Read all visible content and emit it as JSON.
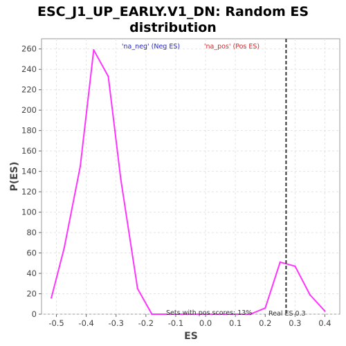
{
  "chart_data": {
    "type": "line",
    "title_lines": [
      "ESC_J1_UP_EARLY.V1_DN: Random ES",
      "distribution"
    ],
    "xlabel": "ES",
    "ylabel": "P(ES)",
    "xlim": [
      -0.55,
      0.45
    ],
    "ylim": [
      0,
      270
    ],
    "x_ticks": [
      -0.5,
      -0.4,
      -0.3,
      -0.2,
      -0.1,
      0.0,
      0.1,
      0.2,
      0.3,
      0.4
    ],
    "y_ticks": [
      0,
      20,
      40,
      60,
      80,
      100,
      120,
      140,
      160,
      180,
      200,
      220,
      240,
      260
    ],
    "grid": true,
    "series": [
      {
        "color": "#ff33ff",
        "x": [
          -0.517,
          -0.474,
          -0.42,
          -0.375,
          -0.326,
          -0.284,
          -0.228,
          -0.18,
          -0.12,
          -0.06,
          0.0,
          0.07,
          0.15,
          0.2,
          0.25,
          0.3,
          0.35,
          0.4
        ],
        "y": [
          16,
          65,
          145,
          259,
          233,
          132,
          25,
          0,
          0,
          0,
          0,
          0,
          0,
          6,
          51,
          47,
          19,
          3
        ]
      }
    ],
    "real_es": 0.27,
    "legend": {
      "neg_label": "'na_neg' (Neg ES)",
      "neg_color": "#2222cc",
      "pos_label": "'na_pos' (Pos ES)",
      "pos_color": "#dd2222"
    },
    "annotations": {
      "pos_scores": "Sets with pos scores: 13%",
      "real_es_label": "Real ES 0.3"
    }
  }
}
